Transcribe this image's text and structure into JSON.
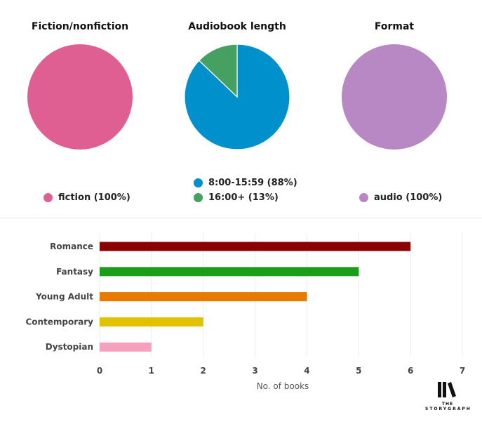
{
  "chart_data": [
    {
      "type": "pie",
      "title": "Fiction/nonfiction",
      "slices": [
        {
          "label": "fiction (100%)",
          "value": 100,
          "color": "#e05f93"
        }
      ]
    },
    {
      "type": "pie",
      "title": "Audiobook length",
      "slices": [
        {
          "label": "8:00-15:59 (88%)",
          "value": 88,
          "color": "#0090cc"
        },
        {
          "label": "16:00+ (13%)",
          "value": 13,
          "color": "#45a062"
        }
      ]
    },
    {
      "type": "pie",
      "title": "Format",
      "slices": [
        {
          "label": "audio (100%)",
          "value": 100,
          "color": "#b888c4"
        }
      ]
    },
    {
      "type": "bar",
      "orientation": "horizontal",
      "categories": [
        "Romance",
        "Fantasy",
        "Young Adult",
        "Contemporary",
        "Dystopian"
      ],
      "values": [
        6,
        5,
        4,
        2,
        1
      ],
      "colors": [
        "#8b0000",
        "#1a9e1a",
        "#e87a00",
        "#e2c100",
        "#f5a0bd"
      ],
      "xlabel": "No. of books",
      "xlim": [
        0,
        7
      ],
      "xticks": [
        0,
        1,
        2,
        3,
        4,
        5,
        6,
        7
      ],
      "grid": true
    }
  ],
  "logo": {
    "top": "THE",
    "bottom": "STORYGRAPH"
  }
}
